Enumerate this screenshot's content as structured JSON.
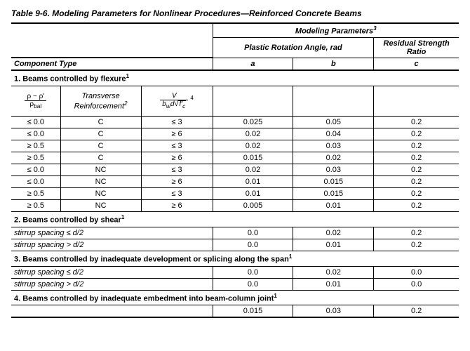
{
  "title": "Table 9-6. Modeling Parameters for Nonlinear Procedures—Reinforced Concrete Beams",
  "headers": {
    "modeling_parameters": "Modeling Parameters",
    "mp_sup": "3",
    "plastic_rotation": "Plastic Rotation Angle, rad",
    "residual_strength": "Residual Strength Ratio",
    "component_type": "Component Type",
    "a": "a",
    "b": "b",
    "c": "c"
  },
  "section1": {
    "label": "1. Beams controlled by flexure",
    "sup": "1",
    "col_transverse": "Transverse Reinforcement",
    "col_transverse_sup": "2",
    "rho_num": "ρ − ρ'",
    "rho_den": "ρ",
    "rho_den_sub": "bal",
    "v_num": "V",
    "v_den_prefix": "b",
    "v_den_sub1": "w",
    "v_den_d": "d",
    "v_den_fc": "f'",
    "v_den_fc_sub": "c",
    "v_sup": "4",
    "rows": [
      {
        "c0": "≤ 0.0",
        "c1": "C",
        "c2": "≤ 3",
        "a": "0.025",
        "b": "0.05",
        "c": "0.2"
      },
      {
        "c0": "≤ 0.0",
        "c1": "C",
        "c2": "≥ 6",
        "a": "0.02",
        "b": "0.04",
        "c": "0.2"
      },
      {
        "c0": "≥ 0.5",
        "c1": "C",
        "c2": "≤ 3",
        "a": "0.02",
        "b": "0.03",
        "c": "0.2"
      },
      {
        "c0": "≥ 0.5",
        "c1": "C",
        "c2": "≥ 6",
        "a": "0.015",
        "b": "0.02",
        "c": "0.2"
      },
      {
        "c0": "≤ 0.0",
        "c1": "NC",
        "c2": "≤ 3",
        "a": "0.02",
        "b": "0.03",
        "c": "0.2"
      },
      {
        "c0": "≤ 0.0",
        "c1": "NC",
        "c2": "≥ 6",
        "a": "0.01",
        "b": "0.015",
        "c": "0.2"
      },
      {
        "c0": "≥ 0.5",
        "c1": "NC",
        "c2": "≤ 3",
        "a": "0.01",
        "b": "0.015",
        "c": "0.2"
      },
      {
        "c0": "≥ 0.5",
        "c1": "NC",
        "c2": "≥ 6",
        "a": "0.005",
        "b": "0.01",
        "c": "0.2"
      }
    ]
  },
  "section2": {
    "label": "2.  Beams controlled by shear",
    "sup": "1",
    "rows": [
      {
        "c0": "stirrup spacing ≤ d/2",
        "a": "0.0",
        "b": "0.02",
        "c": "0.2"
      },
      {
        "c0": "stirrup spacing > d/2",
        "a": "0.0",
        "b": "0.01",
        "c": "0.2"
      }
    ]
  },
  "section3": {
    "label": "3.  Beams controlled by inadequate development or splicing along the span",
    "sup": "1",
    "rows": [
      {
        "c0": "stirrup spacing ≤ d/2",
        "a": "0.0",
        "b": "0.02",
        "c": "0.0"
      },
      {
        "c0": "stirrup spacing > d/2",
        "a": "0.0",
        "b": "0.01",
        "c": "0.0"
      }
    ]
  },
  "section4": {
    "label": "4.  Beams controlled by inadequate embedment into beam-column joint",
    "sup": "1",
    "rows": [
      {
        "a": "0.015",
        "b": "0.03",
        "c": "0.2"
      }
    ]
  }
}
